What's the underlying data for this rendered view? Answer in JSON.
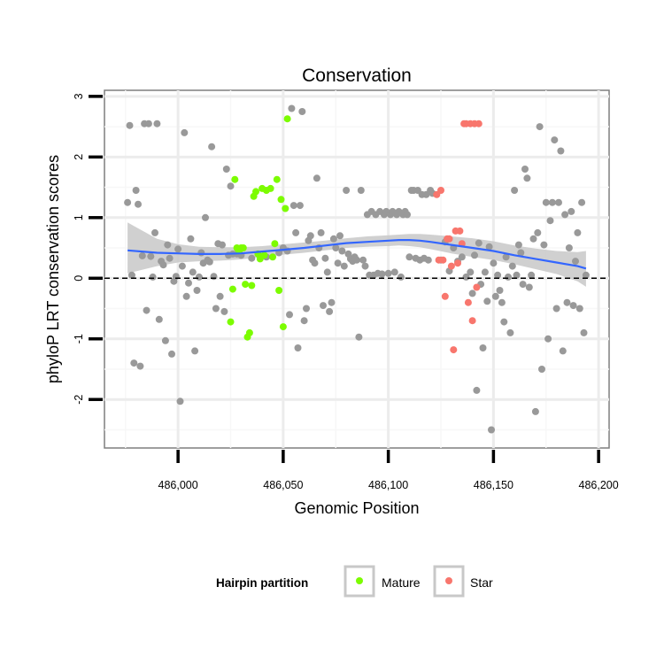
{
  "chart_data": {
    "type": "scatter",
    "title": "Conservation",
    "xlabel": "Genomic Position",
    "ylabel": "phyloP LRT conservation scores",
    "xlim": [
      485965,
      486205
    ],
    "ylim": [
      -2.8,
      3.1
    ],
    "x_ticks": [
      486000,
      486050,
      486100,
      486150,
      486200
    ],
    "x_tick_labels": [
      "486,000",
      "486,050",
      "486,100",
      "486,150",
      "486,200"
    ],
    "y_ticks": [
      -2,
      -1,
      0,
      1,
      2,
      3
    ],
    "y_tick_labels": [
      "-2",
      "-1",
      "0",
      "1",
      "2",
      "3"
    ],
    "reference_line": {
      "y": 0,
      "style": "dashed"
    },
    "grid": true,
    "legend": {
      "title": "Hairpin partition",
      "position": "bottom",
      "entries": [
        {
          "label": "Mature",
          "color": "#7cfc00"
        },
        {
          "label": "Star",
          "color": "#f8766d"
        }
      ]
    },
    "colors": {
      "other": "#999999",
      "Mature": "#7cfc00",
      "Star": "#f8766d",
      "smooth": "#3366ff",
      "band": "#c8c8c8"
    },
    "series": [
      {
        "name": "other",
        "points": [
          [
            485976,
            1.25
          ],
          [
            485977,
            2.52
          ],
          [
            485978,
            0.05
          ],
          [
            485979,
            -1.4
          ],
          [
            485980,
            1.45
          ],
          [
            485981,
            1.22
          ],
          [
            485982,
            -1.45
          ],
          [
            485983,
            0.37
          ],
          [
            485984,
            2.55
          ],
          [
            485985,
            -0.53
          ],
          [
            485986,
            2.55
          ],
          [
            485987,
            0.36
          ],
          [
            485988,
            0.02
          ],
          [
            485989,
            0.75
          ],
          [
            485990,
            2.55
          ],
          [
            485991,
            -0.68
          ],
          [
            485992,
            0.28
          ],
          [
            485993,
            0.22
          ],
          [
            485994,
            -1.03
          ],
          [
            485995,
            0.55
          ],
          [
            485996,
            0.33
          ],
          [
            485997,
            -1.25
          ],
          [
            485998,
            -0.05
          ],
          [
            485999,
            0.03
          ],
          [
            486000,
            0.48
          ],
          [
            486001,
            -2.03
          ],
          [
            486002,
            0.2
          ],
          [
            486003,
            2.4
          ],
          [
            486004,
            -0.3
          ],
          [
            486005,
            -0.08
          ],
          [
            486006,
            0.65
          ],
          [
            486007,
            0.1
          ],
          [
            486008,
            -1.2
          ],
          [
            486009,
            -0.2
          ],
          [
            486010,
            0.02
          ],
          [
            486011,
            0.42
          ],
          [
            486012,
            0.25
          ],
          [
            486013,
            1.0
          ],
          [
            486014,
            0.3
          ],
          [
            486015,
            0.27
          ],
          [
            486016,
            2.17
          ],
          [
            486017,
            0.03
          ],
          [
            486018,
            -0.5
          ],
          [
            486019,
            0.57
          ],
          [
            486020,
            -0.3
          ],
          [
            486021,
            0.55
          ],
          [
            486022,
            -0.55
          ],
          [
            486023,
            1.8
          ],
          [
            486024,
            0.38
          ],
          [
            486025,
            1.52
          ],
          [
            486026,
            0.4
          ],
          [
            486028,
            0.4
          ],
          [
            486030,
            0.38
          ],
          [
            486035,
            0.33
          ],
          [
            486042,
            0.35
          ],
          [
            486048,
            0.42
          ],
          [
            486050,
            0.5
          ],
          [
            486052,
            0.45
          ],
          [
            486053,
            -0.6
          ],
          [
            486054,
            2.8
          ],
          [
            486055,
            1.2
          ],
          [
            486056,
            0.75
          ],
          [
            486057,
            -1.15
          ],
          [
            486058,
            1.2
          ],
          [
            486059,
            2.75
          ],
          [
            486060,
            -0.7
          ],
          [
            486061,
            -0.5
          ],
          [
            486062,
            0.62
          ],
          [
            486063,
            0.7
          ],
          [
            486064,
            0.3
          ],
          [
            486065,
            0.25
          ],
          [
            486066,
            1.65
          ],
          [
            486067,
            0.5
          ],
          [
            486068,
            0.75
          ],
          [
            486069,
            -0.45
          ],
          [
            486070,
            0.33
          ],
          [
            486071,
            0.1
          ],
          [
            486072,
            -0.55
          ],
          [
            486073,
            -0.4
          ],
          [
            486074,
            0.65
          ],
          [
            486075,
            0.5
          ],
          [
            486076,
            0.25
          ],
          [
            486077,
            0.7
          ],
          [
            486078,
            0.45
          ],
          [
            486079,
            0.2
          ],
          [
            486080,
            1.45
          ],
          [
            486081,
            0.4
          ],
          [
            486082,
            0.32
          ],
          [
            486083,
            0.28
          ],
          [
            486084,
            0.35
          ],
          [
            486085,
            0.3
          ],
          [
            486086,
            -0.97
          ],
          [
            486087,
            1.45
          ],
          [
            486088,
            0.3
          ],
          [
            486089,
            0.2
          ],
          [
            486090,
            1.05
          ],
          [
            486091,
            0.05
          ],
          [
            486092,
            1.1
          ],
          [
            486093,
            0.05
          ],
          [
            486094,
            1.05
          ],
          [
            486095,
            0.08
          ],
          [
            486096,
            1.1
          ],
          [
            486097,
            0.07
          ],
          [
            486098,
            1.05
          ],
          [
            486099,
            1.1
          ],
          [
            486100,
            0.08
          ],
          [
            486101,
            1.05
          ],
          [
            486102,
            1.1
          ],
          [
            486103,
            0.1
          ],
          [
            486104,
            1.05
          ],
          [
            486105,
            1.1
          ],
          [
            486106,
            0.02
          ],
          [
            486107,
            1.05
          ],
          [
            486108,
            1.1
          ],
          [
            486109,
            1.05
          ],
          [
            486110,
            0.35
          ],
          [
            486111,
            1.45
          ],
          [
            486112,
            1.45
          ],
          [
            486113,
            0.33
          ],
          [
            486114,
            1.45
          ],
          [
            486115,
            0.3
          ],
          [
            486116,
            1.38
          ],
          [
            486117,
            0.33
          ],
          [
            486118,
            1.38
          ],
          [
            486119,
            0.3
          ],
          [
            486120,
            1.45
          ],
          [
            486121,
            1.4
          ],
          [
            486125,
            0.3
          ],
          [
            486127,
            0.6
          ],
          [
            486129,
            0.12
          ],
          [
            486131,
            0.5
          ],
          [
            486133,
            0.28
          ],
          [
            486135,
            0.35
          ],
          [
            486137,
            0.02
          ],
          [
            486139,
            0.1
          ],
          [
            486140,
            -0.25
          ],
          [
            486141,
            0.38
          ],
          [
            486142,
            -1.85
          ],
          [
            486143,
            0.58
          ],
          [
            486144,
            -0.1
          ],
          [
            486145,
            -1.15
          ],
          [
            486146,
            0.1
          ],
          [
            486147,
            -0.38
          ],
          [
            486148,
            0.52
          ],
          [
            486149,
            -2.5
          ],
          [
            486150,
            0.25
          ],
          [
            486151,
            -0.3
          ],
          [
            486152,
            0.05
          ],
          [
            486153,
            -0.2
          ],
          [
            486154,
            -0.4
          ],
          [
            486155,
            -0.72
          ],
          [
            486156,
            0.35
          ],
          [
            486157,
            0.02
          ],
          [
            486158,
            -0.9
          ],
          [
            486159,
            0.2
          ],
          [
            486160,
            1.45
          ],
          [
            486161,
            0.05
          ],
          [
            486162,
            0.55
          ],
          [
            486163,
            0.42
          ],
          [
            486164,
            -0.1
          ],
          [
            486165,
            1.8
          ],
          [
            486166,
            1.65
          ],
          [
            486167,
            -0.15
          ],
          [
            486168,
            0.05
          ],
          [
            486169,
            0.65
          ],
          [
            486170,
            -2.2
          ],
          [
            486171,
            0.75
          ],
          [
            486172,
            2.5
          ],
          [
            486173,
            -1.5
          ],
          [
            486174,
            0.55
          ],
          [
            486175,
            1.25
          ],
          [
            486176,
            -1.0
          ],
          [
            486177,
            0.95
          ],
          [
            486178,
            1.25
          ],
          [
            486179,
            2.28
          ],
          [
            486180,
            -0.5
          ],
          [
            486181,
            1.25
          ],
          [
            486182,
            2.1
          ],
          [
            486183,
            -1.2
          ],
          [
            486184,
            1.05
          ],
          [
            486185,
            -0.4
          ],
          [
            486186,
            0.5
          ],
          [
            486187,
            1.1
          ],
          [
            486188,
            -0.45
          ],
          [
            486189,
            0.28
          ],
          [
            486190,
            0.75
          ],
          [
            486191,
            -0.5
          ],
          [
            486192,
            1.25
          ],
          [
            486193,
            -0.9
          ],
          [
            486194,
            0.05
          ]
        ]
      },
      {
        "name": "Mature",
        "points": [
          [
            486025,
            -0.72
          ],
          [
            486026,
            -0.18
          ],
          [
            486027,
            1.63
          ],
          [
            486028,
            0.5
          ],
          [
            486029,
            0.45
          ],
          [
            486030,
            0.5
          ],
          [
            486031,
            0.5
          ],
          [
            486032,
            -0.1
          ],
          [
            486033,
            -0.97
          ],
          [
            486034,
            -0.9
          ],
          [
            486035,
            -0.12
          ],
          [
            486036,
            1.35
          ],
          [
            486037,
            1.43
          ],
          [
            486038,
            0.4
          ],
          [
            486039,
            0.32
          ],
          [
            486040,
            1.48
          ],
          [
            486041,
            0.38
          ],
          [
            486042,
            1.45
          ],
          [
            486044,
            1.48
          ],
          [
            486045,
            0.35
          ],
          [
            486046,
            0.57
          ],
          [
            486047,
            1.63
          ],
          [
            486048,
            -0.2
          ],
          [
            486049,
            1.3
          ],
          [
            486050,
            -0.8
          ],
          [
            486051,
            1.15
          ],
          [
            486052,
            2.63
          ]
        ]
      },
      {
        "name": "Star",
        "points": [
          [
            486123,
            1.38
          ],
          [
            486124,
            0.3
          ],
          [
            486125,
            1.45
          ],
          [
            486126,
            0.3
          ],
          [
            486127,
            -0.3
          ],
          [
            486128,
            0.65
          ],
          [
            486129,
            0.65
          ],
          [
            486130,
            0.2
          ],
          [
            486131,
            -1.18
          ],
          [
            486132,
            0.78
          ],
          [
            486133,
            0.25
          ],
          [
            486134,
            0.78
          ],
          [
            486135,
            0.57
          ],
          [
            486136,
            2.55
          ],
          [
            486137,
            2.55
          ],
          [
            486138,
            -0.4
          ],
          [
            486139,
            2.55
          ],
          [
            486140,
            -0.7
          ],
          [
            486141,
            2.55
          ],
          [
            486142,
            -0.15
          ],
          [
            486143,
            2.55
          ]
        ]
      }
    ],
    "smooth": {
      "name": "loess",
      "x": [
        485976,
        485990,
        486000,
        486010,
        486020,
        486030,
        486040,
        486050,
        486060,
        486070,
        486080,
        486090,
        486100,
        486105,
        486110,
        486115,
        486120,
        486130,
        486140,
        486150,
        486160,
        486170,
        486180,
        486190,
        486194
      ],
      "y": [
        0.46,
        0.42,
        0.41,
        0.4,
        0.4,
        0.41,
        0.44,
        0.47,
        0.5,
        0.54,
        0.58,
        0.6,
        0.62,
        0.63,
        0.63,
        0.62,
        0.6,
        0.55,
        0.5,
        0.45,
        0.38,
        0.32,
        0.26,
        0.2,
        0.16
      ],
      "lower": [
        0.08,
        0.2,
        0.26,
        0.28,
        0.29,
        0.31,
        0.35,
        0.39,
        0.42,
        0.46,
        0.5,
        0.52,
        0.53,
        0.54,
        0.53,
        0.51,
        0.48,
        0.41,
        0.35,
        0.3,
        0.23,
        0.15,
        0.07,
        -0.05,
        -0.14
      ],
      "upper": [
        0.92,
        0.65,
        0.56,
        0.52,
        0.51,
        0.51,
        0.53,
        0.56,
        0.59,
        0.62,
        0.66,
        0.69,
        0.71,
        0.72,
        0.73,
        0.73,
        0.72,
        0.69,
        0.66,
        0.61,
        0.54,
        0.49,
        0.45,
        0.43,
        0.45
      ]
    }
  }
}
